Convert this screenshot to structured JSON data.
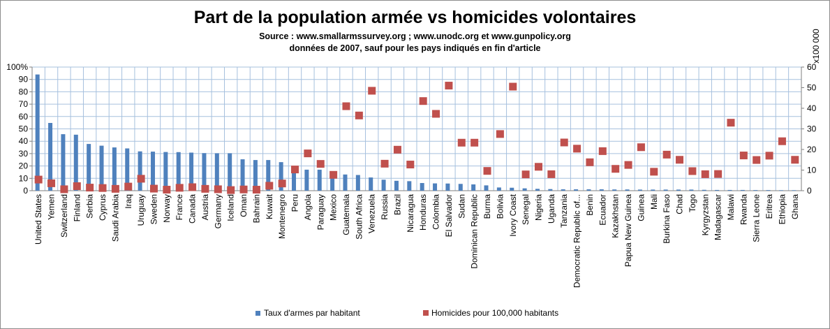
{
  "title": "Part de la population armée vs homicides volontaires",
  "subtitle_1": "Source : www.smallarmssurvey.org ; www.unodc.org et www.gunpolicy.org",
  "subtitle_2": "données de 2007, sauf pour les pays indiqués en fin d'article",
  "colors": {
    "bars": "#4f81bd",
    "markers": "#c0504d",
    "grid": "#a6c0de"
  },
  "chart_data": {
    "type": "bar",
    "legend": "bottom",
    "grid": true,
    "y_left": {
      "label": "",
      "ylim": [
        0,
        100
      ],
      "ticks": [
        "0",
        "10",
        "20",
        "30",
        "40",
        "50",
        "60",
        "70",
        "80",
        "90",
        "100%"
      ]
    },
    "y_right": {
      "label": "x100 000",
      "ylim": [
        0,
        60
      ],
      "ticks": [
        "0",
        "10",
        "20",
        "30",
        "40",
        "50",
        "60"
      ]
    },
    "categories": [
      "United States",
      "Yemen",
      "Switzerland",
      "Finland",
      "Serbia",
      "Cyprus",
      "Saudi Arabia",
      "Iraq",
      "Uruguay",
      "Sweden",
      "Norway",
      "France",
      "Canada",
      "Austria",
      "Germany",
      "Iceland",
      "Oman",
      "Bahrain",
      "Kuwait",
      "Montenegro",
      "Peru",
      "Angola",
      "Paraguay",
      "Mexico",
      "Guatemala",
      "South Africa",
      "Venezuela",
      "Russia",
      "Brazil",
      "Nicaragua",
      "Honduras",
      "Colombia",
      "El Salvador",
      "Sudan",
      "Dominican Republic",
      "Burma",
      "Bolivia",
      "Ivory Coast",
      "Senegal",
      "Nigeria",
      "Uganda",
      "Tanzania",
      "Democratic Republic of...",
      "Benin",
      "Ecuador",
      "Kazakhstan",
      "Papua New Guinea",
      "Guinea",
      "Mali",
      "Burkina Faso",
      "Chad",
      "Togo",
      "Kyrgyzstan",
      "Madagascar",
      "Malawi",
      "Rwanda",
      "Sierra Leone",
      "Eritrea",
      "Ethiopia",
      "Ghana"
    ],
    "series": [
      {
        "name": "Taux d'armes par habitant",
        "type": "bar",
        "axis": "left",
        "values": [
          94.0,
          54.8,
          45.7,
          45.3,
          37.8,
          36.4,
          35.0,
          34.2,
          31.8,
          31.6,
          31.3,
          31.2,
          30.8,
          30.4,
          30.3,
          30.3,
          25.4,
          24.8,
          24.8,
          23.1,
          16.0,
          17.0,
          17.0,
          15.0,
          13.1,
          12.7,
          10.7,
          8.9,
          8.0,
          7.7,
          6.2,
          5.9,
          5.8,
          5.5,
          5.1,
          4.3,
          2.6,
          2.4,
          1.9,
          1.5,
          1.3,
          1.1,
          1.1,
          1.1,
          1.1,
          1.0,
          1.0,
          0.9,
          0.9,
          0.9,
          0.9,
          0.9,
          0.7,
          0.6,
          0.6,
          0.6,
          0.5,
          0.5,
          0.4,
          0.4
        ]
      },
      {
        "name": "Homicides pour 100,000  habitants",
        "type": "scatter",
        "axis": "right",
        "values": [
          5.4,
          3.6,
          0.7,
          2.2,
          1.5,
          1.3,
          0.9,
          2.0,
          5.8,
          1.0,
          0.5,
          1.4,
          1.7,
          0.9,
          0.7,
          0.3,
          0.6,
          0.5,
          2.4,
          3.5,
          10.3,
          18.1,
          13.0,
          7.7,
          41.0,
          36.5,
          48.5,
          13.1,
          19.9,
          12.7,
          43.5,
          37.3,
          51.0,
          23.3,
          23.3,
          9.6,
          27.5,
          50.5,
          7.9,
          11.6,
          8.0,
          23.4,
          20.4,
          13.8,
          19.2,
          10.6,
          12.5,
          21.1,
          9.2,
          17.5,
          15.0,
          9.5,
          8.0,
          8.1,
          33.0,
          17.1,
          14.9,
          17.0,
          24.0,
          15.0
        ]
      }
    ]
  }
}
